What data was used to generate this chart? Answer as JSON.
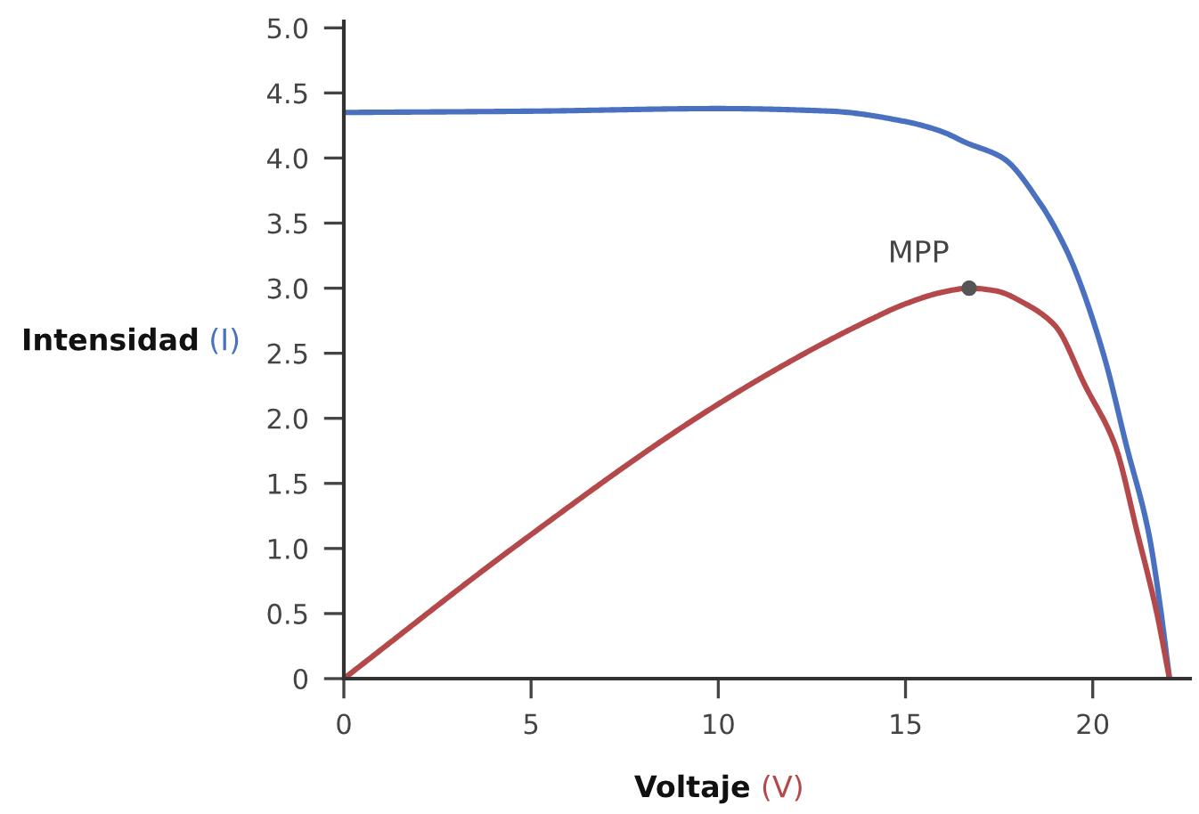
{
  "chart_data": {
    "type": "line",
    "xlabel": "Voltaje (V)",
    "ylabel": "Intensidad (I)",
    "xlim": [
      0,
      22.6
    ],
    "ylim": [
      0,
      5.05
    ],
    "xticks": [
      0,
      5,
      10,
      15,
      20
    ],
    "yticks": [
      {
        "value": 0,
        "label": "0"
      },
      {
        "value": 0.5,
        "label": "0.5"
      },
      {
        "value": 1,
        "label": "1.0"
      },
      {
        "value": 1.5,
        "label": "1.5"
      },
      {
        "value": 2,
        "label": "2.0"
      },
      {
        "value": 2.5,
        "label": "2.5"
      },
      {
        "value": 3,
        "label": "3.0"
      },
      {
        "value": 3.5,
        "label": "3.5"
      },
      {
        "value": 4,
        "label": "4.0"
      },
      {
        "value": 4.5,
        "label": "4.5"
      },
      {
        "value": 5,
        "label": "5.0"
      }
    ],
    "grid": false,
    "legend": false,
    "series": [
      {
        "color": "#4a70c0",
        "x": [
          0,
          5,
          10,
          13,
          15,
          16,
          16.6,
          17.6,
          18.6,
          19.2,
          19.5,
          20.3,
          20.9,
          21.5,
          21.8,
          22.05
        ],
        "values": [
          4.35,
          4.36,
          4.38,
          4.36,
          4.28,
          4.2,
          4.12,
          4.0,
          3.65,
          3.35,
          3.16,
          2.48,
          1.79,
          1.11,
          0.56,
          0
        ]
      },
      {
        "color": "#b5484a",
        "x": [
          0,
          4.5,
          9.4,
          12,
          14,
          15,
          16,
          16.7,
          17.4,
          18.2,
          19.0,
          19.8,
          20.6,
          21.2,
          21.7,
          22.05
        ],
        "values": [
          0,
          1.0,
          2.0,
          2.45,
          2.75,
          2.88,
          2.97,
          3.0,
          2.98,
          2.88,
          2.71,
          2.25,
          1.79,
          1.11,
          0.52,
          0
        ]
      },
      {
        "type": "scatter",
        "color": "#555555",
        "x": [
          16.7
        ],
        "values": [
          3.0
        ],
        "marker": "circle"
      }
    ],
    "annotations": [
      {
        "text": "MPP",
        "x": 16.7,
        "y": 3.0
      }
    ]
  }
}
